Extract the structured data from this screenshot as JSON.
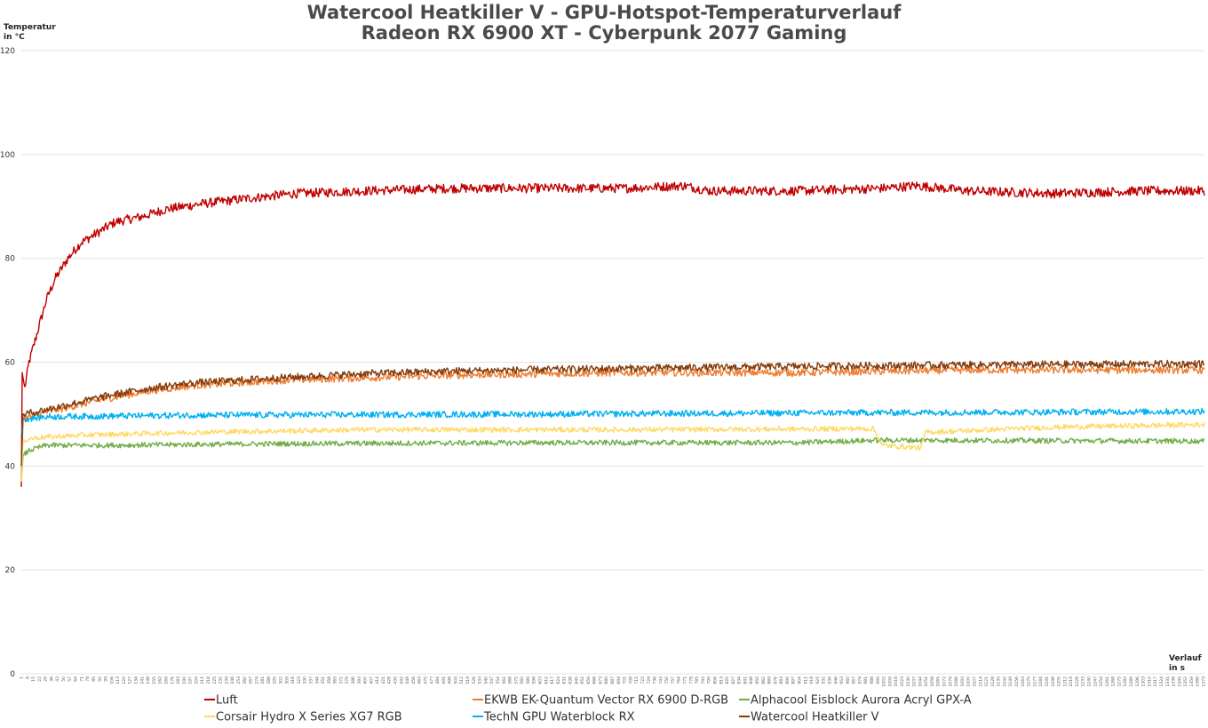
{
  "chart_data": {
    "type": "line",
    "title": [
      "Watercool Heatkiller V - GPU-Hotspot-Temperaturverlauf",
      "Radeon RX 6900 XT - Cyberpunk 2077 Gaming"
    ],
    "ylabel": [
      "Temperatur",
      "in °C"
    ],
    "xlabel": [
      "Verlauf",
      "in s"
    ],
    "ylim": [
      0,
      120
    ],
    "yticks": [
      0,
      20,
      40,
      60,
      80,
      100,
      120
    ],
    "xlim": [
      1,
      1374
    ],
    "x_tick_step": 7,
    "grid": "horizontal",
    "legend_position": "bottom",
    "series": [
      {
        "name": "Luft",
        "color": "#c00000",
        "points": [
          [
            1,
            36
          ],
          [
            2,
            58
          ],
          [
            5,
            55
          ],
          [
            10,
            60
          ],
          [
            20,
            66
          ],
          [
            30,
            72
          ],
          [
            40,
            76
          ],
          [
            55,
            80
          ],
          [
            70,
            83
          ],
          [
            90,
            85
          ],
          [
            110,
            87
          ],
          [
            140,
            88
          ],
          [
            170,
            89.5
          ],
          [
            210,
            90.5
          ],
          [
            260,
            91.5
          ],
          [
            320,
            92.5
          ],
          [
            400,
            93
          ],
          [
            500,
            93.5
          ],
          [
            600,
            93.5
          ],
          [
            700,
            93.5
          ],
          [
            770,
            94
          ],
          [
            800,
            93
          ],
          [
            900,
            93
          ],
          [
            1000,
            93.5
          ],
          [
            1040,
            94
          ],
          [
            1100,
            93
          ],
          [
            1200,
            92.5
          ],
          [
            1300,
            93
          ],
          [
            1374,
            93
          ]
        ],
        "noise": 0.9
      },
      {
        "name": "EKWB EK-Quantum Vector RX 6900 D-RGB",
        "color": "#ed7d31",
        "points": [
          [
            1,
            38
          ],
          [
            3,
            49
          ],
          [
            20,
            50
          ],
          [
            60,
            51.5
          ],
          [
            100,
            53
          ],
          [
            150,
            54.5
          ],
          [
            200,
            55.5
          ],
          [
            300,
            56.5
          ],
          [
            400,
            57
          ],
          [
            500,
            57.5
          ],
          [
            700,
            58
          ],
          [
            900,
            58
          ],
          [
            1100,
            58.5
          ],
          [
            1374,
            58.5
          ]
        ],
        "noise": 0.7
      },
      {
        "name": "Alphacool Eisblock Aurora Acryl GPX-A",
        "color": "#70ad47",
        "points": [
          [
            1,
            37
          ],
          [
            3,
            42
          ],
          [
            10,
            43
          ],
          [
            30,
            44
          ],
          [
            100,
            44
          ],
          [
            300,
            44.3
          ],
          [
            600,
            44.5
          ],
          [
            900,
            44.5
          ],
          [
            1000,
            45
          ],
          [
            1374,
            44.8
          ]
        ],
        "noise": 0.5
      },
      {
        "name": "Corsair Hydro X Series XG7 RGB",
        "color": "#ffd966",
        "points": [
          [
            1,
            37
          ],
          [
            3,
            45
          ],
          [
            20,
            45.5
          ],
          [
            80,
            46
          ],
          [
            200,
            46.5
          ],
          [
            400,
            47
          ],
          [
            700,
            47
          ],
          [
            990,
            47.2
          ],
          [
            1000,
            44
          ],
          [
            1045,
            43.5
          ],
          [
            1050,
            46.5
          ],
          [
            1200,
            47.5
          ],
          [
            1374,
            48
          ]
        ],
        "noise": 0.5
      },
      {
        "name": "TechN GPU Waterblock RX",
        "color": "#00b0f0",
        "points": [
          [
            1,
            46
          ],
          [
            3,
            49
          ],
          [
            30,
            49.5
          ],
          [
            200,
            49.8
          ],
          [
            600,
            50
          ],
          [
            1000,
            50.3
          ],
          [
            1374,
            50.5
          ]
        ],
        "noise": 0.6
      },
      {
        "name": "Watercool Heatkiller V",
        "color": "#843c0c",
        "points": [
          [
            1,
            40
          ],
          [
            3,
            50
          ],
          [
            20,
            50.5
          ],
          [
            60,
            52
          ],
          [
            100,
            53.5
          ],
          [
            150,
            55
          ],
          [
            200,
            56
          ],
          [
            300,
            57
          ],
          [
            400,
            57.8
          ],
          [
            500,
            58.3
          ],
          [
            700,
            58.8
          ],
          [
            900,
            59.2
          ],
          [
            1100,
            59.5
          ],
          [
            1374,
            59.7
          ]
        ],
        "noise": 0.7
      }
    ]
  }
}
